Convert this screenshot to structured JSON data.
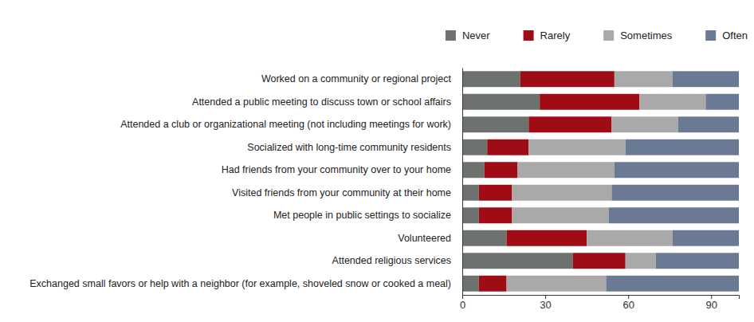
{
  "chart_data": {
    "type": "bar",
    "orientation": "horizontal",
    "stacked": true,
    "categories": [
      "Worked on a community or regional project",
      "Attended a public meeting to discuss town or school affairs",
      "Attended a club or organizational meeting (not including meetings for work)",
      "Socialized with long-time community residents",
      "Had friends from your community over to your home",
      "Visited friends from your community at their home",
      "Met people in public settings to socialize",
      "Volunteered",
      "Attended religious services",
      "Exchanged small favors or help with a neighbor (for example, shoveled snow or cooked a meal)"
    ],
    "series": [
      {
        "name": "Never",
        "color": "#6e726f",
        "values": [
          21,
          28,
          24,
          9,
          8,
          6,
          6,
          16,
          40,
          6
        ]
      },
      {
        "name": "Rarely",
        "color": "#a00c16",
        "values": [
          34,
          36,
          30,
          15,
          12,
          12,
          12,
          29,
          19,
          10
        ]
      },
      {
        "name": "Sometimes",
        "color": "#a9a9a9",
        "values": [
          21,
          24,
          24,
          35,
          35,
          36,
          35,
          31,
          11,
          36
        ]
      },
      {
        "name": "Often",
        "color": "#6a7a94",
        "values": [
          24,
          12,
          22,
          41,
          45,
          46,
          47,
          24,
          30,
          48
        ]
      }
    ],
    "xlim": [
      0,
      100
    ],
    "xticks": [
      0,
      30,
      60,
      90
    ],
    "legend": "top-right"
  }
}
